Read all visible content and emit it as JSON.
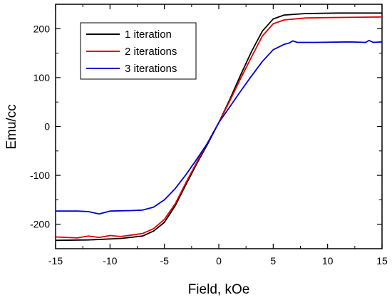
{
  "chart_data": {
    "type": "line",
    "title": "",
    "xlabel": "Field, kOe",
    "ylabel": "Emu/cc",
    "xlim": [
      -15,
      15
    ],
    "ylim": [
      -250,
      250
    ],
    "xticks": [
      -15,
      -10,
      -5,
      0,
      5,
      10,
      15
    ],
    "yticks": [
      -200,
      -100,
      0,
      100,
      200
    ],
    "legend": "top-left",
    "grid": false,
    "series": [
      {
        "name": "1 iteration",
        "color": "#000000",
        "points": [
          [
            -15,
            -233
          ],
          [
            -12,
            -232
          ],
          [
            -9,
            -229
          ],
          [
            -7,
            -224
          ],
          [
            -6,
            -214
          ],
          [
            -5,
            -196
          ],
          [
            -4,
            -162
          ],
          [
            -3,
            -118
          ],
          [
            -2,
            -75
          ],
          [
            -1,
            -35
          ],
          [
            0,
            8
          ],
          [
            1,
            55
          ],
          [
            2,
            105
          ],
          [
            3,
            153
          ],
          [
            4,
            195
          ],
          [
            5,
            220
          ],
          [
            6,
            228
          ],
          [
            8,
            231
          ],
          [
            11,
            232
          ],
          [
            15,
            232
          ]
        ]
      },
      {
        "name": "2 iterations",
        "color": "#e00000",
        "points": [
          [
            -15,
            -226
          ],
          [
            -13,
            -228
          ],
          [
            -12,
            -224
          ],
          [
            -11,
            -227
          ],
          [
            -10,
            -223
          ],
          [
            -9,
            -225
          ],
          [
            -8,
            -222
          ],
          [
            -7,
            -219
          ],
          [
            -6,
            -209
          ],
          [
            -5,
            -190
          ],
          [
            -4,
            -158
          ],
          [
            -3,
            -114
          ],
          [
            -2,
            -72
          ],
          [
            -1,
            -32
          ],
          [
            0,
            8
          ],
          [
            1,
            52
          ],
          [
            2,
            98
          ],
          [
            3,
            142
          ],
          [
            4,
            185
          ],
          [
            5,
            210
          ],
          [
            6,
            218
          ],
          [
            8,
            222
          ],
          [
            11,
            223
          ],
          [
            15,
            224
          ]
        ]
      },
      {
        "name": "3 iterations",
        "color": "#0000d0",
        "points": [
          [
            -15,
            -173
          ],
          [
            -13,
            -173
          ],
          [
            -12,
            -174
          ],
          [
            -11,
            -179
          ],
          [
            -10,
            -173
          ],
          [
            -8,
            -172
          ],
          [
            -7,
            -171
          ],
          [
            -6,
            -165
          ],
          [
            -5,
            -150
          ],
          [
            -4,
            -127
          ],
          [
            -3,
            -98
          ],
          [
            -2,
            -66
          ],
          [
            -1,
            -33
          ],
          [
            0,
            8
          ],
          [
            1,
            40
          ],
          [
            2,
            72
          ],
          [
            3,
            103
          ],
          [
            4,
            133
          ],
          [
            5,
            157
          ],
          [
            6,
            168
          ],
          [
            6.5,
            171
          ],
          [
            6.8,
            175
          ],
          [
            7.2,
            172
          ],
          [
            9,
            172
          ],
          [
            12,
            173
          ],
          [
            13.5,
            172
          ],
          [
            13.8,
            176
          ],
          [
            14.2,
            172
          ],
          [
            15,
            173
          ]
        ]
      }
    ]
  }
}
